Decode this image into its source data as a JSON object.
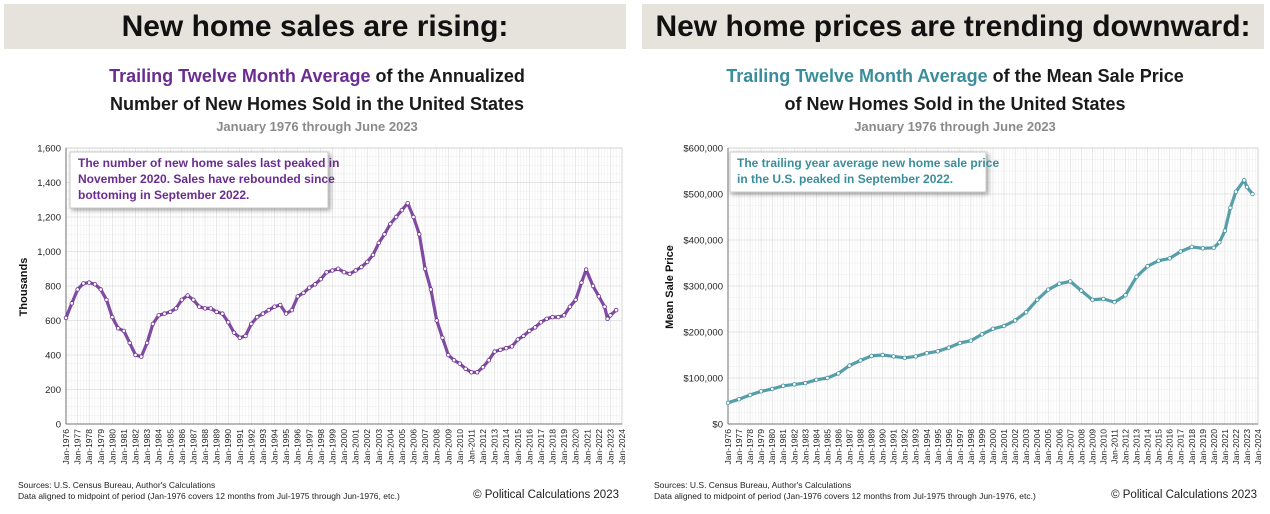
{
  "panels": [
    {
      "banner": "New home sales are rising:",
      "title_highlight": "Trailing Twelve Month Average",
      "title_rest_1": "of the Annualized",
      "title_line_2": "Number of New Homes Sold in the United States",
      "subtitle": "January 1976 through June 2023",
      "ylabel": "Thousands",
      "annotation": [
        "The number of new home sales last peaked in",
        "November 2020. Sales have rebounded since",
        "bottoming in September 2022."
      ],
      "sources": "Sources: U.S. Census Bureau, Author's Calculations",
      "note": "Data aligned to midpoint of period (Jan-1976 covers 12 months from Jul-1975 through Jun-1976, etc.)",
      "copyright": "© Political Calculations 2023"
    },
    {
      "banner": "New home prices are trending downward:",
      "title_highlight": "Trailing Twelve Month Average",
      "title_rest_1": "of the Mean Sale Price",
      "title_line_2": "of New Homes Sold in the United States",
      "subtitle": "January 1976 through June 2023",
      "ylabel": "Mean Sale Price",
      "annotation": [
        "The trailing year average new home sale price",
        "in the U.S. peaked in September 2022."
      ],
      "sources": "Sources: U.S. Census Bureau, Author's Calculations",
      "note": "Data aligned to midpoint of period (Jan-1976 covers 12 months from Jul-1975 through Jun-1976, etc.)",
      "copyright": "© Political Calculations 2023"
    }
  ],
  "chart_data": [
    {
      "type": "line",
      "color": "#6a2c91",
      "x_categories": [
        "Jan-1976",
        "Jan-1977",
        "Jan-1978",
        "Jan-1979",
        "Jan-1980",
        "Jan-1981",
        "Jan-1982",
        "Jan-1983",
        "Jan-1984",
        "Jan-1985",
        "Jan-1986",
        "Jan-1987",
        "Jan-1988",
        "Jan-1989",
        "Jan-1990",
        "Jan-1991",
        "Jan-1992",
        "Jan-1993",
        "Jan-1994",
        "Jan-1995",
        "Jan-1996",
        "Jan-1997",
        "Jan-1998",
        "Jan-1999",
        "Jan-2000",
        "Jan-2001",
        "Jan-2002",
        "Jan-2003",
        "Jan-2004",
        "Jan-2005",
        "Jan-2006",
        "Jan-2007",
        "Jan-2008",
        "Jan-2009",
        "Jan-2010",
        "Jan-2011",
        "Jan-2012",
        "Jan-2013",
        "Jan-2014",
        "Jan-2015",
        "Jan-2016",
        "Jan-2017",
        "Jan-2018",
        "Jan-2019",
        "Jan-2020",
        "Jan-2021",
        "Jan-2022",
        "Jan-2023",
        "Jan-2024"
      ],
      "ylim": [
        0,
        1600
      ],
      "yticks": [
        0,
        200,
        400,
        600,
        800,
        1000,
        1200,
        1400,
        1600
      ],
      "ytick_labels": [
        "0",
        "200",
        "400",
        "600",
        "800",
        "1,000",
        "1,200",
        "1,400",
        "1,600"
      ],
      "ylabel": "Thousands",
      "series": [
        {
          "values": [
            [
              1976.0,
              615
            ],
            [
              1976.5,
              700
            ],
            [
              1977.0,
              780
            ],
            [
              1977.5,
              815
            ],
            [
              1978.0,
              820
            ],
            [
              1978.5,
              810
            ],
            [
              1979.0,
              780
            ],
            [
              1979.5,
              720
            ],
            [
              1980.0,
              620
            ],
            [
              1980.5,
              555
            ],
            [
              1981.0,
              540
            ],
            [
              1981.5,
              470
            ],
            [
              1982.0,
              400
            ],
            [
              1982.5,
              390
            ],
            [
              1983.0,
              470
            ],
            [
              1983.5,
              580
            ],
            [
              1984.0,
              630
            ],
            [
              1984.5,
              640
            ],
            [
              1985.0,
              650
            ],
            [
              1985.5,
              670
            ],
            [
              1986.0,
              720
            ],
            [
              1986.5,
              745
            ],
            [
              1987.0,
              720
            ],
            [
              1987.5,
              680
            ],
            [
              1988.0,
              670
            ],
            [
              1988.5,
              670
            ],
            [
              1989.0,
              650
            ],
            [
              1989.5,
              640
            ],
            [
              1990.0,
              590
            ],
            [
              1990.5,
              530
            ],
            [
              1991.0,
              500
            ],
            [
              1991.5,
              510
            ],
            [
              1992.0,
              580
            ],
            [
              1992.5,
              620
            ],
            [
              1993.0,
              640
            ],
            [
              1993.5,
              660
            ],
            [
              1994.0,
              680
            ],
            [
              1994.5,
              690
            ],
            [
              1995.0,
              640
            ],
            [
              1995.5,
              660
            ],
            [
              1996.0,
              740
            ],
            [
              1996.5,
              760
            ],
            [
              1997.0,
              790
            ],
            [
              1997.5,
              810
            ],
            [
              1998.0,
              840
            ],
            [
              1998.5,
              880
            ],
            [
              1999.0,
              890
            ],
            [
              1999.5,
              900
            ],
            [
              2000.0,
              880
            ],
            [
              2000.5,
              870
            ],
            [
              2001.0,
              890
            ],
            [
              2001.5,
              910
            ],
            [
              2002.0,
              940
            ],
            [
              2002.5,
              980
            ],
            [
              2003.0,
              1050
            ],
            [
              2003.5,
              1100
            ],
            [
              2004.0,
              1160
            ],
            [
              2004.5,
              1200
            ],
            [
              2005.0,
              1240
            ],
            [
              2005.5,
              1280
            ],
            [
              2006.0,
              1200
            ],
            [
              2006.5,
              1100
            ],
            [
              2007.0,
              900
            ],
            [
              2007.5,
              780
            ],
            [
              2008.0,
              600
            ],
            [
              2008.5,
              500
            ],
            [
              2009.0,
              400
            ],
            [
              2009.5,
              370
            ],
            [
              2010.0,
              350
            ],
            [
              2010.5,
              320
            ],
            [
              2011.0,
              300
            ],
            [
              2011.5,
              300
            ],
            [
              2012.0,
              330
            ],
            [
              2012.5,
              370
            ],
            [
              2013.0,
              420
            ],
            [
              2013.5,
              430
            ],
            [
              2014.0,
              440
            ],
            [
              2014.5,
              450
            ],
            [
              2015.0,
              490
            ],
            [
              2015.5,
              510
            ],
            [
              2016.0,
              540
            ],
            [
              2016.5,
              560
            ],
            [
              2017.0,
              590
            ],
            [
              2017.5,
              610
            ],
            [
              2018.0,
              620
            ],
            [
              2018.5,
              620
            ],
            [
              2019.0,
              630
            ],
            [
              2019.5,
              680
            ],
            [
              2020.0,
              720
            ],
            [
              2020.5,
              820
            ],
            [
              2020.9,
              895
            ],
            [
              2021.5,
              800
            ],
            [
              2022.0,
              740
            ],
            [
              2022.5,
              680
            ],
            [
              2022.75,
              610
            ],
            [
              2023.0,
              630
            ],
            [
              2023.5,
              660
            ]
          ]
        }
      ],
      "grid": true
    },
    {
      "type": "line",
      "color": "#3a8e9c",
      "x_categories": [
        "Jan-1976",
        "Jan-1977",
        "Jan-1978",
        "Jan-1979",
        "Jan-1980",
        "Jan-1981",
        "Jan-1982",
        "Jan-1983",
        "Jan-1984",
        "Jan-1985",
        "Jan-1986",
        "Jan-1987",
        "Jan-1988",
        "Jan-1989",
        "Jan-1990",
        "Jan-1991",
        "Jan-1992",
        "Jan-1993",
        "Jan-1994",
        "Jan-1995",
        "Jan-1996",
        "Jan-1997",
        "Jan-1998",
        "Jan-1999",
        "Jan-2000",
        "Jan-2001",
        "Jan-2002",
        "Jan-2003",
        "Jan-2004",
        "Jan-2005",
        "Jan-2006",
        "Jan-2007",
        "Jan-2008",
        "Jan-2009",
        "Jan-2010",
        "Jan-2011",
        "Jan-2012",
        "Jan-2013",
        "Jan-2014",
        "Jan-2015",
        "Jan-2016",
        "Jan-2017",
        "Jan-2018",
        "Jan-2019",
        "Jan-2020",
        "Jan-2021",
        "Jan-2022",
        "Jan-2023",
        "Jan-2024"
      ],
      "ylim": [
        0,
        600000
      ],
      "yticks": [
        0,
        100000,
        200000,
        300000,
        400000,
        500000,
        600000
      ],
      "ytick_labels": [
        "$0",
        "$100,000",
        "$200,000",
        "$300,000",
        "$400,000",
        "$500,000",
        "$600,000"
      ],
      "ylabel": "Mean Sale Price",
      "series": [
        {
          "values": [
            [
              1976.0,
              46000
            ],
            [
              1977.0,
              54000
            ],
            [
              1978.0,
              63000
            ],
            [
              1979.0,
              71000
            ],
            [
              1980.0,
              76000
            ],
            [
              1981.0,
              83000
            ],
            [
              1982.0,
              86000
            ],
            [
              1983.0,
              89000
            ],
            [
              1984.0,
              96000
            ],
            [
              1985.0,
              100000
            ],
            [
              1986.0,
              110000
            ],
            [
              1987.0,
              127000
            ],
            [
              1988.0,
              138000
            ],
            [
              1989.0,
              148000
            ],
            [
              1990.0,
              150000
            ],
            [
              1991.0,
              147000
            ],
            [
              1992.0,
              144000
            ],
            [
              1993.0,
              147000
            ],
            [
              1994.0,
              154000
            ],
            [
              1995.0,
              158000
            ],
            [
              1996.0,
              166000
            ],
            [
              1997.0,
              176000
            ],
            [
              1998.0,
              181000
            ],
            [
              1999.0,
              195000
            ],
            [
              2000.0,
              207000
            ],
            [
              2001.0,
              213000
            ],
            [
              2002.0,
              225000
            ],
            [
              2003.0,
              243000
            ],
            [
              2004.0,
              270000
            ],
            [
              2005.0,
              292000
            ],
            [
              2006.0,
              305000
            ],
            [
              2007.0,
              310000
            ],
            [
              2008.0,
              290000
            ],
            [
              2009.0,
              270000
            ],
            [
              2010.0,
              272000
            ],
            [
              2011.0,
              265000
            ],
            [
              2012.0,
              280000
            ],
            [
              2013.0,
              320000
            ],
            [
              2014.0,
              343000
            ],
            [
              2015.0,
              355000
            ],
            [
              2016.0,
              360000
            ],
            [
              2017.0,
              375000
            ],
            [
              2018.0,
              385000
            ],
            [
              2019.0,
              382000
            ],
            [
              2020.0,
              383000
            ],
            [
              2020.5,
              395000
            ],
            [
              2021.0,
              420000
            ],
            [
              2021.5,
              470000
            ],
            [
              2022.0,
              505000
            ],
            [
              2022.75,
              530000
            ],
            [
              2023.0,
              515000
            ],
            [
              2023.5,
              500000
            ]
          ]
        }
      ],
      "grid": true
    }
  ]
}
